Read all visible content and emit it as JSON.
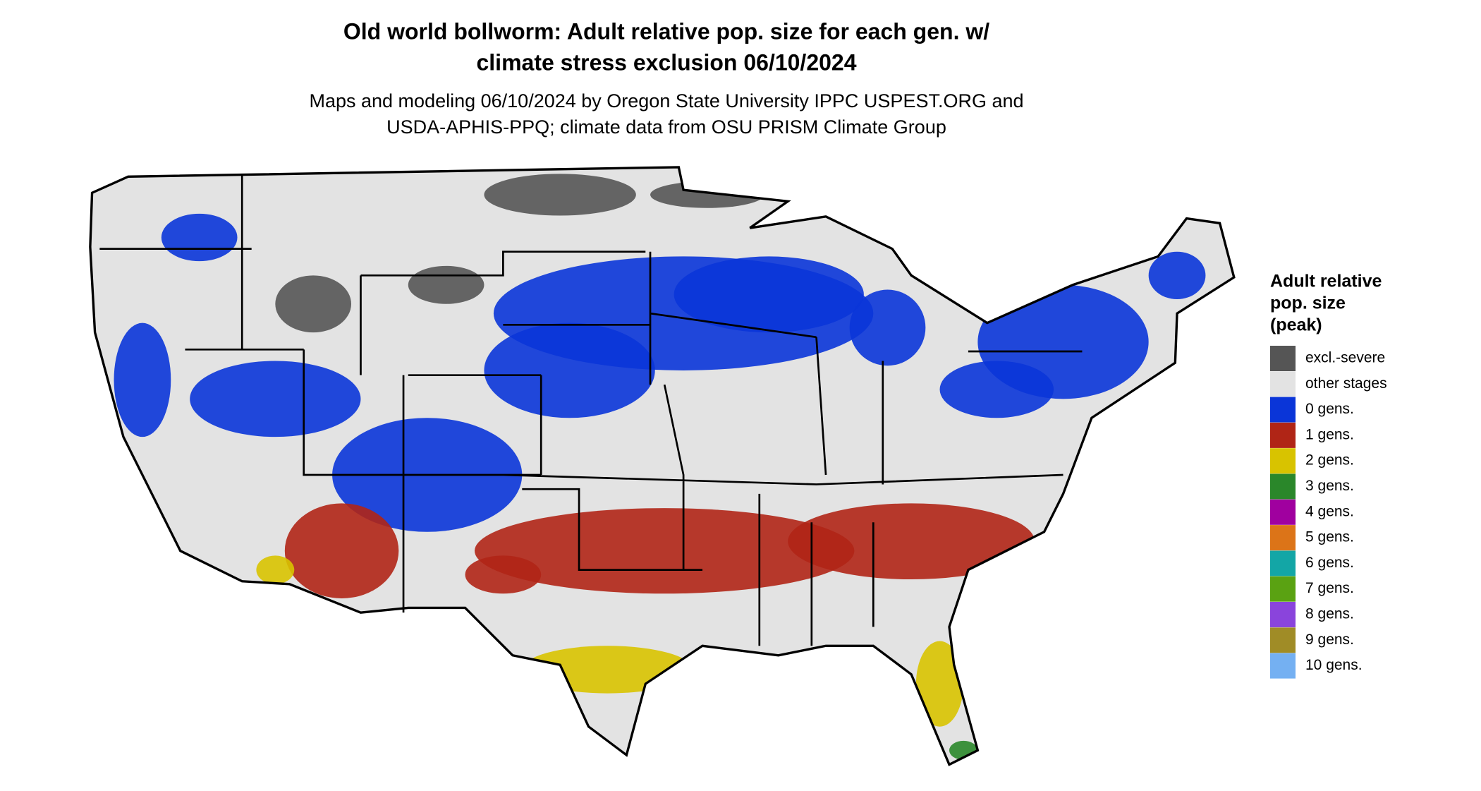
{
  "header": {
    "title": [
      "Old world bollworm: Adult relative pop. size for each gen. w/",
      "climate stress exclusion 06/10/2024"
    ],
    "subtitle": [
      "Maps and modeling 06/10/2024 by Oregon State University IPPC USPEST.ORG and",
      "USDA-APHIS-PPQ; climate data from OSU PRISM Climate Group"
    ]
  },
  "legend": {
    "title": [
      "Adult relative",
      "pop. size",
      "(peak)"
    ],
    "items": [
      {
        "label": "excl.-severe",
        "color": "#555555"
      },
      {
        "label": "other stages",
        "color": "#e3e3e3"
      },
      {
        "label": "0 gens.",
        "color": "#0a35d8"
      },
      {
        "label": "1 gens.",
        "color": "#b02516"
      },
      {
        "label": "2 gens.",
        "color": "#d8c300"
      },
      {
        "label": "3 gens.",
        "color": "#2a872a"
      },
      {
        "label": "4 gens.",
        "color": "#a0009f"
      },
      {
        "label": "5 gens.",
        "color": "#dc7418"
      },
      {
        "label": "6 gens.",
        "color": "#13a6a6"
      },
      {
        "label": "7 gens.",
        "color": "#5aa212"
      },
      {
        "label": "8 gens.",
        "color": "#8a44dc"
      },
      {
        "label": "9 gens.",
        "color": "#a08c26"
      },
      {
        "label": "10 gens.",
        "color": "#74b0f2"
      }
    ]
  }
}
